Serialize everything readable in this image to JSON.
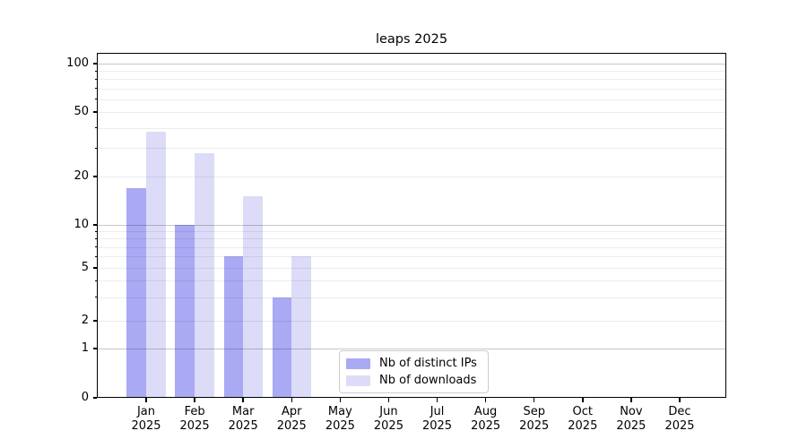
{
  "figure": {
    "title": "leaps 2025"
  },
  "chart_data": {
    "type": "bar",
    "title": "leaps 2025",
    "x_axis": {
      "categories": [
        "Jan",
        "Feb",
        "Mar",
        "Apr",
        "May",
        "Jun",
        "Jul",
        "Aug",
        "Sep",
        "Oct",
        "Nov",
        "Dec"
      ],
      "year_label": "2025"
    },
    "series": [
      {
        "name": "Nb of distinct IPs",
        "color": "#a9a9f4",
        "values": [
          17,
          10,
          6,
          3,
          0,
          0,
          0,
          0,
          0,
          0,
          0,
          0
        ]
      },
      {
        "name": "Nb of downloads",
        "color": "#dcdcf8",
        "values": [
          38,
          28,
          15,
          6,
          0,
          0,
          0,
          0,
          0,
          0,
          0,
          0
        ]
      }
    ],
    "y_axis": {
      "scale": "log (with zero baseline)",
      "tick_labels": [
        100,
        50,
        20,
        10,
        5,
        2,
        1,
        0
      ],
      "decade_gridlines": [
        1,
        10,
        100
      ],
      "minor_gridlines": [
        2,
        3,
        4,
        5,
        6,
        7,
        8,
        9,
        20,
        30,
        40,
        50,
        60,
        70,
        80,
        90
      ],
      "top": 100
    },
    "legend": {
      "location": "lower center",
      "entries": [
        "Nb of distinct IPs",
        "Nb of downloads"
      ]
    },
    "grid": true
  },
  "colors": {
    "background": "#ffffff",
    "axis": "#000000",
    "grid_major": "#c7c7c7",
    "grid_minor": "#ececec",
    "legend_border": "#cccccc",
    "series_distinct_ips": "#a9a9f4",
    "series_downloads": "#dcdcf8"
  }
}
